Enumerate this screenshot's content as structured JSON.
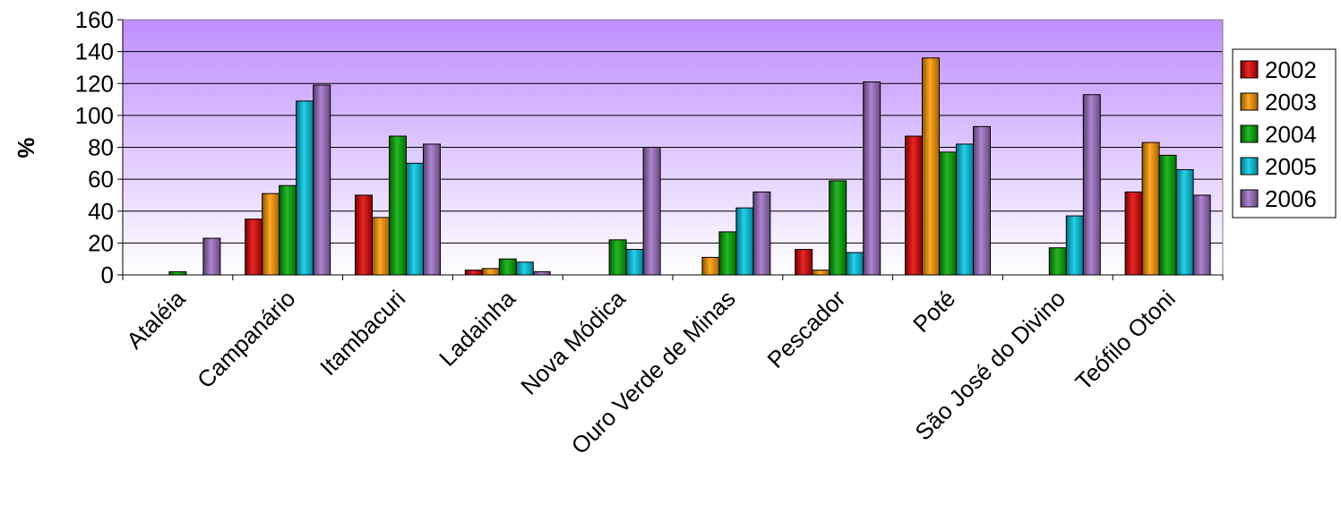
{
  "chart_data": {
    "type": "bar",
    "title": "",
    "xlabel": "",
    "ylabel": "%",
    "ylim": [
      0,
      160
    ],
    "yticks": [
      0,
      20,
      40,
      60,
      80,
      100,
      120,
      140,
      160
    ],
    "grid": true,
    "legend_position": "right",
    "categories": [
      "Ataléia",
      "Campanário",
      "Itambacuri",
      "Ladainha",
      "Nova Módica",
      "Ouro Verde de Minas",
      "Pescador",
      "Poté",
      "São José do Divino",
      "Teófilo Otoni"
    ],
    "series": [
      {
        "name": "2002",
        "color": "#e00000",
        "values": [
          0,
          35,
          50,
          3,
          0,
          0,
          16,
          87,
          0,
          52
        ]
      },
      {
        "name": "2003",
        "color": "#ff9900",
        "values": [
          0,
          51,
          36,
          4,
          0,
          11,
          3,
          136,
          0,
          83
        ]
      },
      {
        "name": "2004",
        "color": "#00aa00",
        "values": [
          2,
          56,
          87,
          10,
          22,
          27,
          59,
          77,
          17,
          75
        ]
      },
      {
        "name": "2005",
        "color": "#00c8e6",
        "values": [
          0,
          109,
          70,
          8,
          16,
          42,
          14,
          82,
          37,
          66
        ]
      },
      {
        "name": "2006",
        "color": "#a070c8",
        "values": [
          23,
          119,
          82,
          2,
          80,
          52,
          121,
          93,
          113,
          50
        ]
      }
    ],
    "plot_background": [
      "#bf8fff",
      "#ffffff"
    ]
  }
}
